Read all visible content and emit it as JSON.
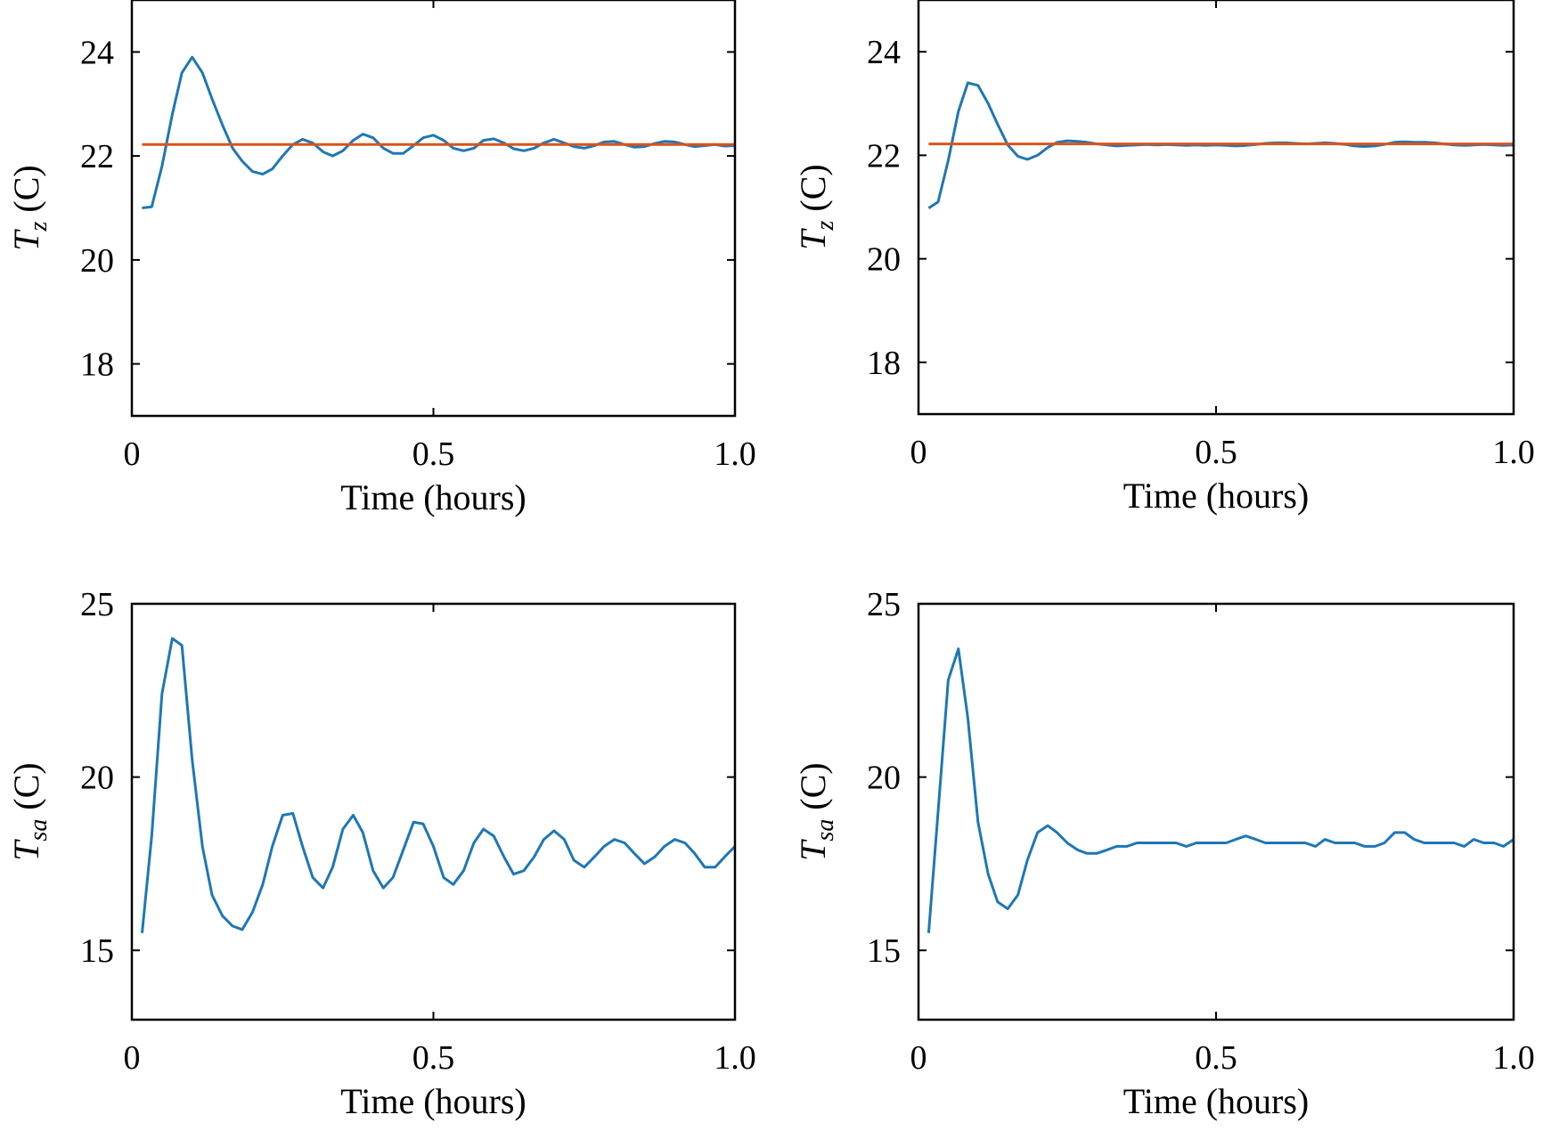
{
  "colors": {
    "series": "#1f77b4",
    "setpoint": "#d9541a"
  },
  "chart_data": [
    {
      "type": "line",
      "ylabel_var": "T",
      "ylabel_sub": "z",
      "ylabel_unit": "(C)",
      "xlabel": "Time (hours)",
      "xlim": [
        0,
        1.0
      ],
      "ylim": [
        17,
        25
      ],
      "xticks": [
        0,
        0.5,
        1.0
      ],
      "xtick_labels": [
        "0",
        "0.5",
        "1.0"
      ],
      "yticks": [
        18,
        20,
        22,
        24
      ],
      "ytick_labels": [
        "18",
        "20",
        "22",
        "24"
      ],
      "grid": false,
      "series": [
        {
          "role": "response",
          "x": [
            0.017,
            0.033,
            0.05,
            0.067,
            0.083,
            0.1,
            0.117,
            0.133,
            0.15,
            0.167,
            0.183,
            0.2,
            0.217,
            0.233,
            0.25,
            0.267,
            0.283,
            0.3,
            0.317,
            0.333,
            0.35,
            0.367,
            0.383,
            0.4,
            0.417,
            0.433,
            0.45,
            0.467,
            0.483,
            0.5,
            0.517,
            0.533,
            0.55,
            0.567,
            0.583,
            0.6,
            0.617,
            0.633,
            0.65,
            0.667,
            0.683,
            0.7,
            0.717,
            0.733,
            0.75,
            0.767,
            0.783,
            0.8,
            0.817,
            0.833,
            0.85,
            0.867,
            0.883,
            0.9,
            0.917,
            0.933,
            0.95,
            0.967,
            0.983,
            1.0
          ],
          "y": [
            21.0,
            21.02,
            21.8,
            22.8,
            23.6,
            23.9,
            23.6,
            23.1,
            22.6,
            22.15,
            21.9,
            21.7,
            21.65,
            21.75,
            22.0,
            22.22,
            22.32,
            22.25,
            22.08,
            22.0,
            22.1,
            22.3,
            22.42,
            22.35,
            22.15,
            22.05,
            22.05,
            22.2,
            22.35,
            22.4,
            22.3,
            22.15,
            22.1,
            22.15,
            22.3,
            22.33,
            22.25,
            22.14,
            22.1,
            22.15,
            22.25,
            22.32,
            22.25,
            22.18,
            22.15,
            22.2,
            22.27,
            22.28,
            22.22,
            22.17,
            22.18,
            22.24,
            22.28,
            22.27,
            22.22,
            22.18,
            22.2,
            22.22,
            22.19,
            22.2
          ]
        },
        {
          "role": "setpoint",
          "x": [
            0.017,
            1.0
          ],
          "y": [
            22.22,
            22.22
          ]
        }
      ]
    },
    {
      "type": "line",
      "ylabel_var": "T",
      "ylabel_sub": "z",
      "ylabel_unit": "(C)",
      "xlabel": "Time (hours)",
      "xlim": [
        0,
        1.0
      ],
      "ylim": [
        17,
        25
      ],
      "xticks": [
        0,
        0.5,
        1.0
      ],
      "xtick_labels": [
        "0",
        "0.5",
        "1.0"
      ],
      "yticks": [
        18,
        20,
        22,
        24
      ],
      "ytick_labels": [
        "18",
        "20",
        "22",
        "24"
      ],
      "grid": false,
      "series": [
        {
          "role": "response",
          "x": [
            0.017,
            0.033,
            0.05,
            0.067,
            0.083,
            0.1,
            0.117,
            0.133,
            0.15,
            0.167,
            0.183,
            0.2,
            0.217,
            0.233,
            0.25,
            0.267,
            0.283,
            0.3,
            0.317,
            0.333,
            0.35,
            0.367,
            0.383,
            0.4,
            0.417,
            0.433,
            0.45,
            0.467,
            0.483,
            0.5,
            0.517,
            0.533,
            0.55,
            0.567,
            0.583,
            0.6,
            0.617,
            0.633,
            0.65,
            0.667,
            0.683,
            0.7,
            0.717,
            0.733,
            0.75,
            0.767,
            0.783,
            0.8,
            0.817,
            0.833,
            0.85,
            0.867,
            0.883,
            0.9,
            0.917,
            0.933,
            0.95,
            0.967,
            0.983,
            1.0
          ],
          "y": [
            20.98,
            21.1,
            21.9,
            22.85,
            23.4,
            23.35,
            23.0,
            22.6,
            22.2,
            21.98,
            21.92,
            22.0,
            22.15,
            22.25,
            22.28,
            22.27,
            22.25,
            22.22,
            22.2,
            22.18,
            22.19,
            22.2,
            22.21,
            22.2,
            22.21,
            22.2,
            22.19,
            22.2,
            22.19,
            22.2,
            22.19,
            22.18,
            22.19,
            22.21,
            22.23,
            22.24,
            22.24,
            22.23,
            22.22,
            22.23,
            22.24,
            22.23,
            22.21,
            22.18,
            22.17,
            22.18,
            22.21,
            22.25,
            22.26,
            22.25,
            22.25,
            22.24,
            22.22,
            22.2,
            22.19,
            22.2,
            22.21,
            22.2,
            22.19,
            22.2
          ]
        },
        {
          "role": "setpoint",
          "x": [
            0.017,
            1.0
          ],
          "y": [
            22.22,
            22.22
          ]
        }
      ]
    },
    {
      "type": "line",
      "ylabel_var": "T",
      "ylabel_sub": "sa",
      "ylabel_unit": "(C)",
      "xlabel": "Time (hours)",
      "xlim": [
        0,
        1.0
      ],
      "ylim": [
        13,
        25
      ],
      "xticks": [
        0,
        0.5,
        1.0
      ],
      "xtick_labels": [
        "0",
        "0.5",
        "1.0"
      ],
      "yticks": [
        15,
        20,
        25
      ],
      "ytick_labels": [
        "15",
        "20",
        "25"
      ],
      "grid": false,
      "series": [
        {
          "role": "response",
          "x": [
            0.017,
            0.033,
            0.05,
            0.067,
            0.083,
            0.1,
            0.117,
            0.133,
            0.15,
            0.167,
            0.183,
            0.2,
            0.217,
            0.233,
            0.25,
            0.267,
            0.283,
            0.3,
            0.317,
            0.333,
            0.35,
            0.367,
            0.383,
            0.4,
            0.417,
            0.433,
            0.45,
            0.467,
            0.483,
            0.5,
            0.517,
            0.533,
            0.55,
            0.567,
            0.583,
            0.6,
            0.617,
            0.633,
            0.65,
            0.667,
            0.683,
            0.7,
            0.717,
            0.733,
            0.75,
            0.767,
            0.783,
            0.8,
            0.817,
            0.833,
            0.85,
            0.867,
            0.883,
            0.9,
            0.917,
            0.933,
            0.95,
            0.967,
            0.983,
            1.0
          ],
          "y": [
            15.5,
            18.3,
            22.4,
            24.0,
            23.8,
            20.5,
            18.0,
            16.6,
            16.0,
            15.7,
            15.6,
            16.1,
            16.9,
            18.0,
            18.9,
            18.95,
            18.0,
            17.1,
            16.8,
            17.4,
            18.5,
            18.9,
            18.4,
            17.3,
            16.8,
            17.1,
            17.9,
            18.7,
            18.65,
            18.0,
            17.1,
            16.9,
            17.3,
            18.1,
            18.5,
            18.3,
            17.7,
            17.2,
            17.3,
            17.7,
            18.2,
            18.45,
            18.2,
            17.6,
            17.4,
            17.7,
            18.0,
            18.2,
            18.1,
            17.8,
            17.5,
            17.7,
            18.0,
            18.2,
            18.1,
            17.8,
            17.4,
            17.4,
            17.7,
            18.0
          ]
        }
      ]
    },
    {
      "type": "line",
      "ylabel_var": "T",
      "ylabel_sub": "sa",
      "ylabel_unit": "(C)",
      "xlabel": "Time (hours)",
      "xlim": [
        0,
        1.0
      ],
      "ylim": [
        13,
        25
      ],
      "xticks": [
        0,
        0.5,
        1.0
      ],
      "xtick_labels": [
        "0",
        "0.5",
        "1.0"
      ],
      "yticks": [
        15,
        20,
        25
      ],
      "ytick_labels": [
        "15",
        "20",
        "25"
      ],
      "grid": false,
      "series": [
        {
          "role": "response",
          "x": [
            0.017,
            0.033,
            0.05,
            0.067,
            0.083,
            0.1,
            0.117,
            0.133,
            0.15,
            0.167,
            0.183,
            0.2,
            0.217,
            0.233,
            0.25,
            0.267,
            0.283,
            0.3,
            0.317,
            0.333,
            0.35,
            0.367,
            0.383,
            0.4,
            0.417,
            0.433,
            0.45,
            0.467,
            0.483,
            0.5,
            0.517,
            0.533,
            0.55,
            0.567,
            0.583,
            0.6,
            0.617,
            0.633,
            0.65,
            0.667,
            0.683,
            0.7,
            0.717,
            0.733,
            0.75,
            0.767,
            0.783,
            0.8,
            0.817,
            0.833,
            0.85,
            0.867,
            0.883,
            0.9,
            0.917,
            0.933,
            0.95,
            0.967,
            0.983,
            1.0
          ],
          "y": [
            15.5,
            19.0,
            22.8,
            23.7,
            21.7,
            18.7,
            17.2,
            16.4,
            16.2,
            16.6,
            17.6,
            18.4,
            18.6,
            18.4,
            18.1,
            17.9,
            17.8,
            17.8,
            17.9,
            18.0,
            18.0,
            18.1,
            18.1,
            18.1,
            18.1,
            18.1,
            18.0,
            18.1,
            18.1,
            18.1,
            18.1,
            18.2,
            18.3,
            18.2,
            18.1,
            18.1,
            18.1,
            18.1,
            18.1,
            18.0,
            18.2,
            18.1,
            18.1,
            18.1,
            18.0,
            18.0,
            18.1,
            18.4,
            18.4,
            18.2,
            18.1,
            18.1,
            18.1,
            18.1,
            18.0,
            18.2,
            18.1,
            18.1,
            18.0,
            18.2
          ]
        }
      ]
    }
  ]
}
